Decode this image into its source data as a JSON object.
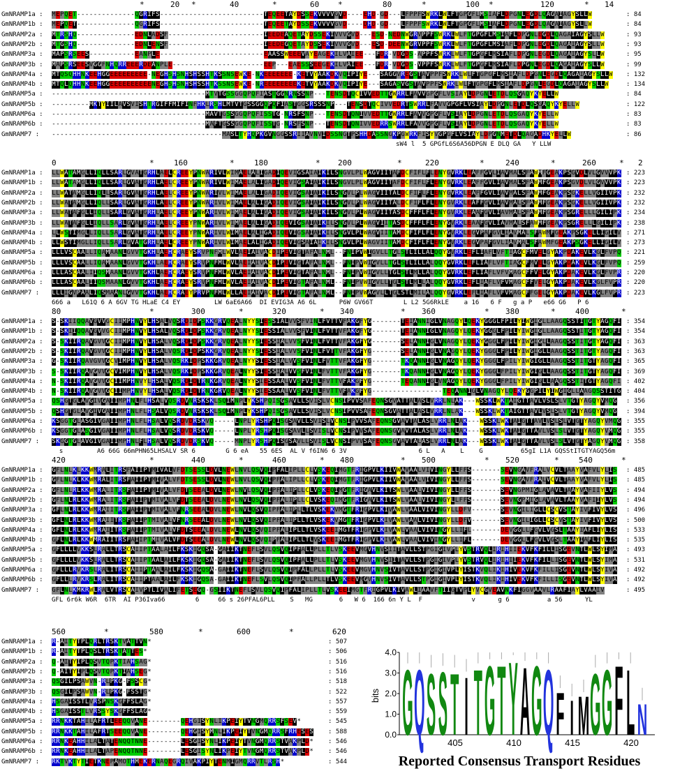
{
  "colors": {
    "black": "#000000",
    "grey": "#808080",
    "green": "#00cc00",
    "yellow": "#ffff00",
    "blue": "#0000cc",
    "red": "#dd0000",
    "white": "#ffffff",
    "logo_green": "#118811",
    "logo_blue": "#2233dd",
    "logo_black": "#000000"
  },
  "names": [
    "GmNRAMP1a",
    "GmNRAMP1b",
    "GmNRAMP2a",
    "GmNRAMP2b",
    "GmNRAMP3a",
    "GmNRAMP3b",
    "GmNRAMP4a",
    "GmNRAMP4b",
    "GmNRAMP5a",
    "GmNRAMP5b",
    "GmNRAMP6a",
    "GmNRAMP6b",
    "GmNRAMP7"
  ],
  "blocks": [
    {
      "ruler": [
        "*",
        "20",
        "*",
        "40",
        "*",
        "60",
        "*",
        "80",
        "*",
        "100",
        "*",
        "120",
        "*",
        "14"
      ],
      "ends": [
        ": 84",
        ": 84",
        ": 93",
        ": 93",
        ": 95",
        ": 99",
        ": 132",
        ": 134",
        ": 84",
        ": 122",
        ": 83",
        ": 83",
        ": 86"
      ],
      "rows": [
        "MEPQET--------------QGRIFS-------------------------TEQEETAYDSSEKVVVVGVD----EHD-GD---LFPPFSWRKLWLFTGPGFLMSIAFLDPGNLEGDLQAGAIAGYSLLW",
        "MEPQET--------------QGRIFS-------------------------TEQEETAYDSSEKVVVVGVD----DHD-GD---LFPPFSWRKLWLFTGPGFLMSIAFLDPGNLEGDLQAGAIAGYSLLW",
        "MTRSHQ--------------EDNLADSF-----------------------IEEDEAQETAYDSSEKIVVVGVD---ESD-NEDNWGRVPPFSWRKLWLFTGPGFLMSIAFLDPGNLEGDLQAGAIAGYSLLW",
        "MTGSHQ--------------EDNLENSF-----------------------IEEDEGQETAYDSSEKIVVVGVD---ESD-DEENWGRVPPFSWRKLWLFTGPGFLMSIAFLDPGNLEGDLQAGAIAGYSLLW",
        "MAPSRSEES-----------EANPLE-------------------------EAASSWEEEVAYEAGEKILVAIEE---FDR-VDGDS-APPFSWRKLWLFTGPGFLMSIAFLDPGNLEGDLQAGAIAGYSLLW",
        "MAPSRSEESVGGFNHQRREEERDEANPLE----------------------EEP---EAESSSEEGEKILVAIEE---FDR-VDGDS-VPPFSWRKLWLFTGPGFLMSIAFLDPGNLEGDLQAGAIAGYSLLW",
        "MTQSQHHNKEEHGGEEEEEEEEE-NEGHSHSNHSHSSHTKSSNSEWKE-NKEEEEEEE-KETVYAAKDKVQIPIYE---SAGGVREGSTAVPPFSWRKLWLFTGPGFLMSIAFLDPGNLEGDLQAGAIAGYSLLW",
        "MTQLQHHNKEEHGGEEEEEEEEEENEGHSHSNHSHSSHTKSSNSEWKE-NREEEEEEEEKETVYAAKDKVQIPIYE---SAGASVGSTAVPPFSWRKLWLFTGPGFLMSIAFLDPGNLEGDLQAGAIAGYSLLW",
        "-------------------------------------MTVTGSSGGQPQFIASTGGNRNSSNP---TENSDTQCIVVEDTTGWRRLFAVVGPGFLVSIAYLDPGNLETDLQSGAQYKYELLW",
        "---------MKTYIILAVSVISHTRGIFFMIFINFHKLRSHLMTVTGSSGGQPQFIASTGGSRSSSNP---TENSDTQCIVVEDRTSWRRLFAVVGPGFLVSIAYLDPGNLETDLQSGAQYKYELLW",
        "-------------------------------------MAVTGSSGGQPQFISSTG-NRSFSNP---TENSDTQNIVVEDTTGWRRLFAVVGPGFLVSIAYLDPGNLETDLQSGAQYKYELLW",
        "-------------------------------------MAFTGSSGGQPQFISSTG-NRSFSNP---TENSDTQNIVVEDRRSWRRLFAVVGPGFLVSIAYLDPGNLETDLQSGAQYKYELLW",
        "-----------------------------------------MASLTYHQPKGVNGGSSRIIAVNVIDSSNGTPSHHDASSNGKPGWRKFISYVGPGFLVSIAYLDPGNMETDLQAGADHKYELLW"
      ],
      "consensus": "                                                                                           sW4 l  5 GPGfL6S6A56DPGN E DLQ GA   Y LLW"
    },
    {
      "ruler": [
        "0",
        "*",
        "160",
        "*",
        "180",
        "*",
        "200",
        "*",
        "220",
        "*",
        "240",
        "*",
        "260",
        "*",
        "2"
      ],
      "ends": [
        ": 223",
        ": 223",
        ": 232",
        ": 232",
        ": 234",
        ": 238",
        ": 271",
        ": 273",
        ": 221",
        ": 259",
        ": 220",
        ": 220",
        ": 223"
      ],
      "rows": [
        "LLWATAMGLLIQLLSARLGVATGRHLAELCREEYPNWARIVLWIMAELALIGADIQEVIGSAIAIKILSNGVLPLWAGVIITAFDCFIFLFLENYGVRKLEAFFGVLIAVMALSFAWMFGEAKPSGVDLVLGVVVPKL",
        "LLWATAMGLLIQLLSARLGVATGRHLAELCREEYPNWARIVLWIMAELALIGADIQEVIGSAIAIKILSNGVLPLWAGVIITAFDCFIFLFLENYGVRKLEAFFGVLIAVMALSFAWMFGEAKPSGVDLVLGVVVPKL",
        "LLWATAMGLLIQLLSARLGVATGRHLAELCREEYPNWARIVLWIMAELALIGADIQEVIGSAIAIKILSNGVLPLWAGVIITALDCFIFLFLENYGVRKLEAFFGVLIAVMALSFAWMFGEAKPSGKELLVGIIVPKL",
        "LLWATAMGLLIQLLSARLGVATGRHLAELCREEYPNWARIVLWIMAELALIGADIQEVIGSAIAIKILSNGVLPLWAGVIITALDCFIFLFLENYGVRKLEAFFGVLIAVMALSFAWMFGEAKPSGKELLVGIIVPKL",
        "LLWATAFGLLIQLLSARLGVATGRHLAELCREEYPNWARIVLWIMAELALIGADIQEVIGSAIAIKILSNGVLPLWAGVIITASDCFFFLFLENYGVRKLEAAFGVLIAVMALSFAWMFGEAKPSGRELLLGILIPKL",
        "LLWATAFGLLIQLLSARLGVATGRHLAELCREEYPNWARIVLWIMAELALIGADIQEVIGSAIAIKILSNGVLPLWAGVIITASDCFFFLFLENYGVRKLEAAFGVLIAVMALSFAWMFGEAKPSGRELLLGILIPKL",
        "LLWSTIMGLLIQLLSARLGVATGRHLAELCREEYPNWARIVLWIMAELALIGADIQEVIGSAIAIKILSNGVLPLWAGVIITAMDCFIFLFLENYGVRKLEGVPAFGVLIAVMALSFAWMFGEAKPSGKELLIGILVPRL",
        "LLWSTIMGLLIQLLSARLGVATGRHLAELCREEYPNWARIVLWIMAELALIGADIQEVIGSAIAIKILSNGVLPLWAGVIITAMDCFIFLFLENYGVRKLEGVPAFGVLIAVMALSFAWMFGEAKPSGKELLIGILVPRL",
        "LLLVSCAALLIQAMAANLGVVTGKHLAEHCRAEYSRVPNFMLWVLAEIAIVACDIPEVIGTAFALNML--FNIPVWIGVLLTGLSTLILLALQQYGVRKLEFLIAFLVFTIAGCFMVELGYAKPDAKEVLKGLFVPQL",
        "LLLVSCAALLIQAMAANLGVVTGKHLAEHCRAEYSRVPNFMLWVLAEIAIVACDIPEVIGTAFALNML--FNIPVWIGVLLTGLSTLILLALQQYGVRKLEFLIAFLVFTIAGCFMVELGYAKPDAKEVLKGLFVPQL",
        "LLLASCAALIIQSMAANLGVVTGKHLAEHCRAEYSRVPNFMLWVLAEIAIVACDIPEVIGTAFALNML--FNIPVWIGVLLTGLSTLMLLALQQYGVRKLEFLIAFLVFVMAGCFFVELGYAKPDAKEVLKGLFVPRL",
        "LLLASCAALIIQSMAANLGVVTGKHLAEHCRAEYSRVPNFMLWVLAEIAIVACDIPEVIGTAFALNML--FNIPVWIGVLLTGLSTLMLLALQQYGVRKLEFLIAFLVFVMAGCFFVELGYAKPDAKEVLKGLFVPRL",
        "LLLIGVPAALIQSMAANLGVVTGKHLAEHCRAEYPRVPNFMLWLLAEIAIVACDIPEVIGTAFALNML--FNIPVWAGVLLTGLSTLMILALQQYGVRKLEFLIAFLVFVMAGCFFGELGYAKPDAKEVLKGLFVPRL"
      ],
      "consensus": "666 a   L61Q 6 A 6GV TG HLaE C4 EY         LW 6aE6A66  DI EVIG3A A6 6L      P6W GV66T        L L2 5G6RkLE    a 16   6 F   g a P   e66 G6   P 6"
    },
    {
      "ruler": [
        "80",
        "*",
        "300",
        "*",
        "320",
        "*",
        "340",
        "*",
        "360",
        "*",
        "380",
        "*",
        "400",
        "*"
      ],
      "ends": [
        ": 354",
        ": 354",
        ": 363",
        ": 363",
        ": 365",
        ": 369",
        ": 402",
        ": 404",
        ": 356",
        ": 394",
        ": 355",
        ": 355",
        ": 358"
      ],
      "rows": [
        "S-SKIIQQAVGVVGCIIMPHNVYLHSALVQSRDIDPSKKGRVQEALNYYSIESSIALVVSFVINLFVTTVFAKGFYG-------TEIANNIGLVNAGQYLQEKYGGGLFPILYIWGIGLLAAGQSSTITGTYAGQFIMGG",
        "S-SKIIQQAVGVVGCIIMPHNVYLHSALVQSRDIDPSKKGRVQEALNYYSIESSIALVVSFVINLFVTTVFAKGFYG-------TEIANNIGLVNAGQYLQEKYGGGLFPILYIWGIGLLAAGQSSTITGTYAGQFIMGG",
        "S-SKIIRQAVGVVGCIIMPHNVYLHSALVQSRDIDPSKKGRVQEALNYYSIESSIALVVSFVINLFVTTVFAKGFYG-------SELANNIGLVNAGQYLQEKYGGGLFPILYIWGIGLLAAGQSSTITGTYAGQFIMGG",
        "S-SKIIRQAVGVVGCIIMPHNVYLHSALVQSRDIDPSKKGRVQEALNYYSIESSIALVVSFVINLFVTTVFAKGFYG-------SELANNIGLVNAGQYLQEKYGGGLFPILYIWGIGLLAAGQSSTITGTYAGQFIMGG",
        "G-SKIIRQAVGVVGCVIMPHNVYLHSALVQSRKIDPSKKGRVQEALNYYSIESSIALVVSFVINLFVTTVFAKGFYG-------TKQANNIGLVNAGQYLQEKYGGGLFPILYIWGIGLLAAGQSSTITGTYAGQFIMGG",
        "S-SKIIRQAVGVVGCVIMPHNVYLHSALVQSRKIDPSKKGRVQEALNYYSIESSIALVVSFVINLFVTTVFAKGFYG-------TKQANNIGLVNAGQYLQEKYGGGLFPILYIWGIGLLAAGQSSTITGTYAGQFIMGG",
        "N-SKIIRQAVGVVGCIIMPHNVYLHSALVQSRDIDTRNKGRVQEALNYYSIESSAALVVSFVINLFVTTVFAKGFYG-------TEQANNIGLVNAGQYLQEKYGGGLFPILYIWGIGLLAAGQSSTITGTYAGQFIMGG",
        "N-SKIIRQAVGVVGCIIMPHNVYLHSALVQSRDIDTRNKGRVQEALNYYSIESSAALVVSFVINLFVTTVFAKGFYG-----------------TEQANNIGLVNAGQYLQEKYGGPILYIWGIGLLAAGQSSTITGTYA",
        "QSHGTGLAVGIVGAIIMPHNLFLHSALVQSRDVNRSKSKLSQIMNPLYKSHPQISGSAVLLSVISLVCNSIPVVSAFEQNSGVATTALASLVRRLNLAK---WSSKLWKTAIGTTAVLVSLSLVTGTYAGQYVMQG",
        "QSHGTGLAVGIVGAIIMPHNLFLHSALVQSRDVNRSKSKLSQIMNPLYKSHPQISGSAVLLSVISLVCNSIPVVSAFEQNSGVATTALASLVRRLNLAK---WSSKLWKTAIGTTAVLVSLSLVTGTYAGQYVMQG",
        "KSGGTGLASGIVGAIIMPHNLFLHSALVQSRDVDRSKVQ-----LNPLYRSHPQISGSAVLLSVISLVCNSIPVVSAFEQNSGVAVTALASLVRRLNLAK---WSSKLWKTAIGTTAVLVSLSLVTGTYAGQYVMQG",
        "KSGGTGLASGIVGAIIMPHNLFLHSALVQSRDVDRSKVQ-----LNPLYRSHPQISGSAVLLSVISLVCNSIPVVSAFEQNSGVAVTALASLVRRLNLAK---WSSKLWKTAIGTTAVLVSLSLVTGTYAGQYVMQG",
        "SKGGTGLAVGIVGAIIMPHNLFLHSALVQSRDVDRSKVQ-----MNPLYRSHPQISGSAVLLSVISLVCNSIPVVSAFEQNSGVAVTALASLVRRLNLAK---WSSKLWKTAIGTTAVLVSLSLVTGTYAGQYVMQG"
      ],
      "consensus": "  s         A6 66G 66mPHN65LHSALV SR 6        G 6 eA   55 6ES  AL V f6IN6 6 3V                   6 L   A    L    G          65gI L1A GQSStITGTYAGQ56m"
    },
    {
      "ruler": [
        "420",
        "*",
        "440",
        "*",
        "460",
        "*",
        "480",
        "*",
        "500",
        "*",
        "520",
        "*",
        "540",
        "*"
      ],
      "ends": [
        ": 485",
        ": 485",
        ": 494",
        ": 494",
        ": 496",
        ": 500",
        ": 533",
        ": 535",
        ": 493",
        ": 531",
        ": 492",
        ": 492",
        ": 495"
      ],
      "rows": [
        "GFLNLKLKKWMRALITRSFAIIPTMIVALVFDTSESSLDVLNEWLNVLQSVQIPFALIPLLCLVSKEQIMGTFRIGPVLKIIVWAVAALVIVINGYLLFFS-------SEVNGAVFRALVCVLTAAYVAFVLYLIS",
        "GFLNLKLKKWMRALITRSFAIIPTMIVALVFDTSESSLDVLNEWLNVLQSVQIPFALIPLLCLVSKEQIMGTFRIGPVLKIIVWAVAALVIVINGYLLFFS-------SEVNGAVFRALVCVLTAAYVAFVLYLIS",
        "GFLNLRLKKWMRALITRSFAIIPTMIVALVFDTSEEALDVLNEWLNVLQSVQIPFALIPLLCLVSKEQIMGTFRIGAVLKITSWLVAALVIVINGYLLFFS-------SEVNGPMIGLAVAVLTAAYVAFIIYLVS",
        "GFLNLRLKKWMRALITRSFAIIPTMIVALVFDTSEEALDVLNEWLNVLQSVQIPFALIPLLCLVSKEQIMGTFRIGAVLKITSWLVAALVIVINGYLLFFS-------SEVNGPMIGLAVAVLTAAYVAFIIYLVS",
        "GFLNLRLKKWMRAIITRSFAIIPTMIVALVFNRSEEALDVLNEWLNVLQSVQIPFALIPLLTLVSKEKVMGTFRIGPVLKIVAWLVAALVIVINGYLLDFV-------SEVNGILIGLLCSCVSTAYIVFIVYLVS",
        "GFLNLRLKKWMRAIITRSFAIIPTMIVALVFNRSEEALDVLNEWLNVLQSVQIPFALIPLLTLVSKEKVMGTFRIGPVLKIVAWLVAALVIVINGYLLDFV-------SEVNGILIGLLCSCVSTAYIVFIVYLVS",
        "GFLNLRLKKWMRAIITRSFAIIPTMIVALVFDTSEEALDVLNEWLNVLQSVQIPFALIPLLTLVSKEEIMGTFRIGPVLKIVAWLVAALVIVINGYLLIFL-------DEVGGLLFGVLVGSLTAAYIAFLIYLIS",
        "GFLNLRLKKWMRAIITRSFAIIPTMIVALVFDTSEEALDVLNEWLNVLQSVQIPFALIPLLTLVSKEEIMGTFRIGPVLKIVAWLVAALVIVINGYLLIFL-------DEVGGLLFGVLVGSLTAAYIAFLIYLIS",
        "GFLLLLVKKSLRALLTRSCAIIPTAALAILFKSKIGQSA-GAIIKTNEFLSVLQSVQIPFALLPLLTLVSKEEVMGVHNVSIITAVLLSTPGIGIVPLYVSTRVQLIRIHIIEKVFKFILLISGEVNTLWLSYIMA",
        "GFLLLLVKKSLRALLTRSCAIIPTAALAILFKSKIGQSA-GAIIKTNEFLSVLQSVQIPFALLPLLTLVSKEEVMGVHNVSIITAVLLSTPGIGIVPLYVSTRVQLIRIHIIEKVFKFILLISGEVNTLWLSYIMA",
        "GFLLLRVKRSLRALITRSCAIIPTAALAILFKSKIGQSA-GAIIKTNEFLSVLQSVQIPFALLPLLTLVSKEEVMGVHNVSIVTAVLLSTPGIGIVPLYISTKVQLIKIHIVEKVFKFILLISGEVNTLWLSYIVA",
        "GFLLLRVKRSLRALITRSCAIIPTAALAILFKSKIGQSA-GAIIKTNEFLSVLQSVQIPFALLPLLTLVSKEEVMGVHNVSIVTAVLLSTPGIGIVPLYISTKVQLIKIHIVEKVFKFILLISGEVNTLWLSYIVA",
        "GFLNLKMKRWLRALVTRSCAIVPTLIVALIFETSEGQ-GSIIKTNEFLSVLQSVQIPFALIPLLTLVSKEEIMGTFRIGPVLKIVAWLIAAVFTIIGTVPLYVCGVEAVNKFIGGVAAVLRAAFIAYLVAAIV"
      ],
      "consensus": "GFL 6r6k W6R  6TR  AI P36Iva66        6     66 s 26PFAL6PLL    S   MG       6   W 6  166 6n Y L  F             v      g 6          a 56      YL"
    },
    {
      "ruler": [
        "560",
        "*",
        "580",
        "*",
        "600",
        "*",
        "620"
      ],
      "ends": [
        ": 507",
        ": 506",
        ": 516",
        ": 516",
        ": 518",
        ": 522",
        ": 557",
        ": 559",
        ": 545",
        ": 588",
        ": 546",
        ": 546",
        ": 544"
      ],
      "rows": [
        "R-AITYTPLQRLTRSKTVATTVN*",
        "R-AITYTPLQSLTRSKTATTES*",
        "Q-AITYIPLQSVTQPKTIAHSAG*",
        "Q-AITYIPLQSVTQPKTIAHSEG*",
        "QSGILPSAWVN-RLPKG-FSSCG*",
        "QSGILPSAWVN-RLPKG-FSSTG*",
        "HSGAISSTLVRSPNSKGFFSLAG*",
        "HSGAISSTLVRSSYSKGFFSLAG*",
        "RRNKKTAHILAFRTLEEQQVANE--------QEHGISYNLIKPEIYTVNGMQRRSFSEV*",
        "RRNKKTAHILAFRTSEEQQVANE--------QEHGISYMNLIKPEIYTVNGMQRRSFRHESES*",
        "RRNKEAHHILALTATENQQTNNE--------LESGISYNLIKPEIYTVNGMQRRSTVAKPLD*",
        "RRNKEAHHILALTAPENQQTNNE--------LESGISYNLIKPEIYTVNGMQRRSTVAKPLD*",
        "RKTVKTYTIETKNEPAMOTHMEKERNAQEGRQIVAKPIYTENMIGMQRRVTLRSH*"
      ],
      "consensus": ""
    }
  ],
  "logo": {
    "ylabel": "bits",
    "yticks": [
      "4.0",
      "3.0",
      "2.0",
      "1.0",
      "0.0"
    ],
    "xticks": [
      "405",
      "410",
      "415",
      "420"
    ],
    "letters": [
      "G",
      "Q",
      "S",
      "S",
      "T",
      "I",
      "T",
      "G",
      "T",
      "Y",
      "A",
      "G",
      "Q",
      "F",
      "I",
      "M",
      "G",
      "G",
      "F",
      "L",
      "N"
    ],
    "caption": "Reported Consensus Transport Residues"
  }
}
